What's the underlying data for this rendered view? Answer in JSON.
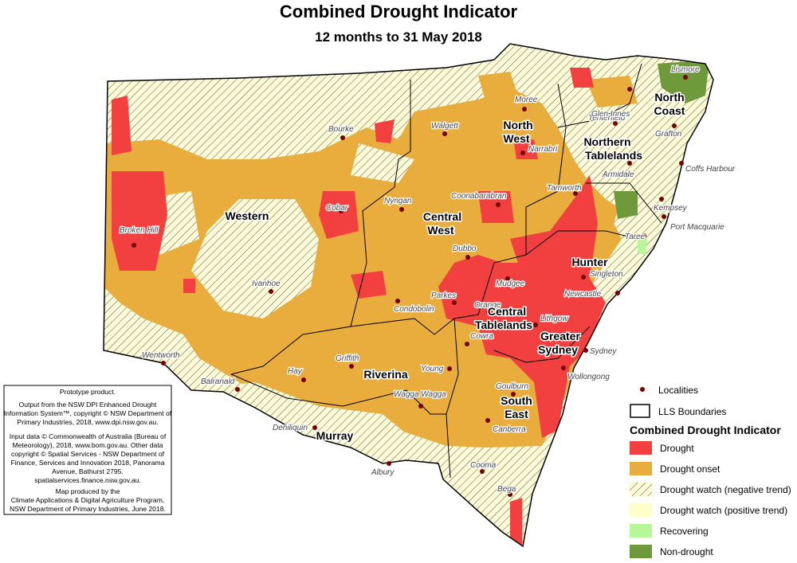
{
  "header": {
    "title": "Combined Drought Indicator",
    "subtitle": "12 months to 31 May 2018"
  },
  "regions": [
    [
      "Western"
    ],
    [
      "North",
      "West"
    ],
    [
      "Central",
      "West"
    ],
    [
      "Northern",
      "Tablelands"
    ],
    [
      "North",
      "Coast"
    ],
    [
      "Hunter"
    ],
    [
      "Central",
      "Tablelands"
    ],
    [
      "Greater",
      "Sydney"
    ],
    [
      "Riverina"
    ],
    [
      "Murray"
    ],
    [
      "South",
      "East"
    ]
  ],
  "localities": [
    "Moree",
    "Bourke",
    "Walgett",
    "Narrabri",
    "Tenterfield",
    "Lismore",
    "Glen Innes",
    "Grafton",
    "Coffs Harbour",
    "Armidale",
    "Tamworth",
    "Coonabarabran",
    "Nyngan",
    "Cobar",
    "Broken Hill",
    "Kempsey",
    "Port Macquarie",
    "Taree",
    "Dubbo",
    "Ivanhoe",
    "Singleton",
    "Mudgee",
    "Parkes",
    "Condobolin",
    "Orange",
    "Newcastle",
    "Lithgow",
    "Cowra",
    "Sydney",
    "Wentworth",
    "Griffith",
    "Young",
    "Wollongong",
    "Hay",
    "Balranald",
    "Goulburn",
    "Wagga Wagga",
    "Deniliquin",
    "Canberra",
    "Albury",
    "Cooma",
    "Bega"
  ],
  "note": {
    "lines": [
      "Prototype product.",
      "Output from the NSW DPI Enhanced Drought",
      "Information System™, copyright © NSW Department of",
      "Primary Industries, 2018, www.dpi.nsw.gov.au.",
      "Input data © Commonwealth of Australia (Bureau of",
      "Meteorology), 2018, www.bom.gov.au. Other data",
      "copyright © Spatial Services - NSW Department of",
      "Finance, Services and Innovation 2018, Panorama",
      "Avenue, Bathurst 2795.",
      "spatialservices.finance.nsw.gov.au.",
      "Map produced by the",
      "Climate Applications & Digital Agriculture Program,",
      "NSW Department of Primary Industries, June 2018."
    ]
  },
  "legend": {
    "localities": "Localities",
    "boundaries": "LLS Boundaries",
    "title": "Combined Drought Indicator",
    "items": [
      "Drought",
      "Drought onset",
      "Drought watch (negative trend)",
      "Drought watch (positive trend)",
      "Recovering",
      "Non-drought"
    ]
  }
}
